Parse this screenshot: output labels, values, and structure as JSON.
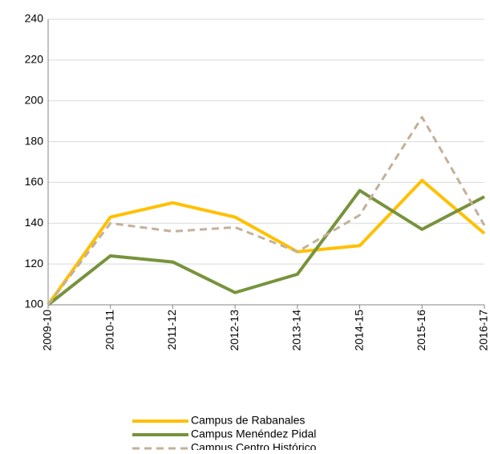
{
  "chart_data": {
    "type": "line",
    "categories": [
      "2009-10",
      "2010-11",
      "2011-12",
      "2012-13",
      "2013-14",
      "2014-15",
      "2015-16",
      "2016-17"
    ],
    "series": [
      {
        "name": "Campus de Rabanales",
        "color": "#ffc000",
        "dash": false,
        "values": [
          100,
          143,
          150,
          143,
          126,
          129,
          161,
          135
        ]
      },
      {
        "name": "Campus Menéndez Pidal",
        "color": "#77933c",
        "dash": false,
        "values": [
          100,
          124,
          121,
          106,
          115,
          156,
          137,
          153
        ]
      },
      {
        "name": "Campus Centro Histórico",
        "color": "#c4b09a",
        "dash": true,
        "values": [
          100,
          140,
          136,
          138,
          126,
          144,
          192,
          139
        ]
      }
    ],
    "ylim": [
      100,
      240
    ],
    "yticks": [
      100,
      120,
      140,
      160,
      180,
      200,
      220,
      240
    ],
    "grid": true
  }
}
